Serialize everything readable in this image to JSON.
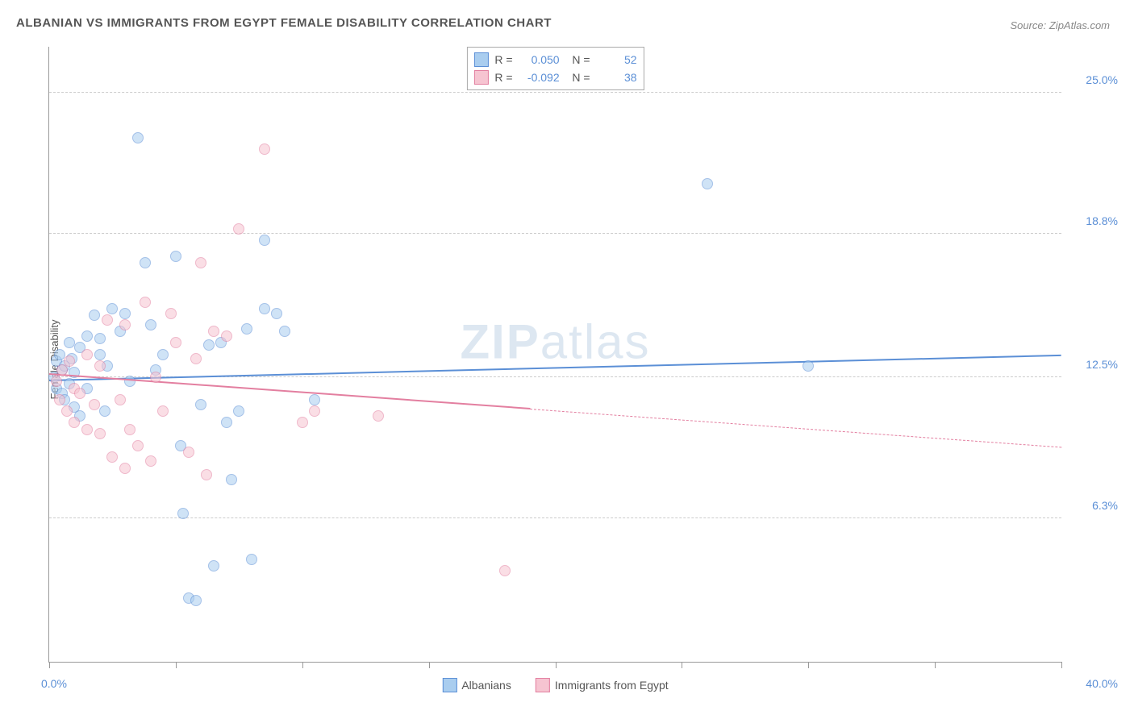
{
  "title": "ALBANIAN VS IMMIGRANTS FROM EGYPT FEMALE DISABILITY CORRELATION CHART",
  "source": "Source: ZipAtlas.com",
  "ylabel": "Female Disability",
  "watermark_bold": "ZIP",
  "watermark_rest": "atlas",
  "chart": {
    "type": "scatter",
    "background_color": "#ffffff",
    "grid_color": "#cccccc",
    "axis_color": "#999999",
    "text_color": "#555555",
    "value_color": "#5b8fd6",
    "xlim": [
      0,
      40
    ],
    "ylim": [
      0,
      27
    ],
    "xticks": [
      0,
      5,
      10,
      15,
      20,
      25,
      30,
      35,
      40
    ],
    "yticks": [
      6.3,
      12.5,
      18.8,
      25.0
    ],
    "ytick_labels": [
      "6.3%",
      "12.5%",
      "18.8%",
      "25.0%"
    ],
    "xmin_label": "0.0%",
    "xmax_label": "40.0%",
    "marker_radius": 7,
    "marker_opacity": 0.55,
    "series": [
      {
        "name": "Albanians",
        "fill": "#a9cdef",
        "stroke": "#5b8fd6",
        "R": "0.050",
        "N": "52",
        "trend": {
          "x1": 0,
          "y1": 12.3,
          "x2": 40,
          "y2": 13.4,
          "solid_until_x": 40
        },
        "points": [
          [
            0.2,
            12.5
          ],
          [
            0.3,
            13.2
          ],
          [
            0.3,
            12.0
          ],
          [
            0.4,
            13.5
          ],
          [
            0.5,
            11.8
          ],
          [
            0.5,
            12.8
          ],
          [
            0.6,
            13.0
          ],
          [
            0.6,
            11.5
          ],
          [
            0.8,
            12.2
          ],
          [
            0.8,
            14.0
          ],
          [
            0.9,
            13.3
          ],
          [
            1.0,
            12.7
          ],
          [
            1.0,
            11.2
          ],
          [
            1.2,
            13.8
          ],
          [
            1.2,
            10.8
          ],
          [
            1.5,
            14.3
          ],
          [
            1.5,
            12.0
          ],
          [
            1.8,
            15.2
          ],
          [
            2.0,
            13.5
          ],
          [
            2.0,
            14.2
          ],
          [
            2.2,
            11.0
          ],
          [
            2.5,
            15.5
          ],
          [
            2.8,
            14.5
          ],
          [
            3.0,
            15.3
          ],
          [
            3.5,
            23.0
          ],
          [
            3.8,
            17.5
          ],
          [
            4.0,
            14.8
          ],
          [
            4.5,
            13.5
          ],
          [
            5.0,
            17.8
          ],
          [
            5.2,
            9.5
          ],
          [
            5.3,
            6.5
          ],
          [
            5.5,
            2.8
          ],
          [
            5.8,
            2.7
          ],
          [
            6.0,
            11.3
          ],
          [
            6.3,
            13.9
          ],
          [
            6.5,
            4.2
          ],
          [
            6.8,
            14.0
          ],
          [
            7.0,
            10.5
          ],
          [
            7.2,
            8.0
          ],
          [
            7.5,
            11.0
          ],
          [
            7.8,
            14.6
          ],
          [
            8.0,
            4.5
          ],
          [
            8.5,
            15.5
          ],
          [
            8.5,
            18.5
          ],
          [
            9.0,
            15.3
          ],
          [
            9.3,
            14.5
          ],
          [
            10.5,
            11.5
          ],
          [
            26.0,
            21.0
          ],
          [
            30.0,
            13.0
          ],
          [
            4.2,
            12.8
          ],
          [
            3.2,
            12.3
          ],
          [
            2.3,
            13.0
          ]
        ]
      },
      {
        "name": "Immigrants from Egypt",
        "fill": "#f6c4d1",
        "stroke": "#e37fa0",
        "R": "-0.092",
        "N": "38",
        "trend": {
          "x1": 0,
          "y1": 12.6,
          "x2": 40,
          "y2": 9.4,
          "solid_until_x": 19
        },
        "points": [
          [
            0.3,
            12.3
          ],
          [
            0.4,
            11.5
          ],
          [
            0.5,
            12.8
          ],
          [
            0.7,
            11.0
          ],
          [
            0.8,
            13.2
          ],
          [
            1.0,
            10.5
          ],
          [
            1.0,
            12.0
          ],
          [
            1.2,
            11.8
          ],
          [
            1.5,
            10.2
          ],
          [
            1.5,
            13.5
          ],
          [
            1.8,
            11.3
          ],
          [
            2.0,
            10.0
          ],
          [
            2.0,
            13.0
          ],
          [
            2.3,
            15.0
          ],
          [
            2.5,
            9.0
          ],
          [
            2.8,
            11.5
          ],
          [
            3.0,
            8.5
          ],
          [
            3.0,
            14.8
          ],
          [
            3.2,
            10.2
          ],
          [
            3.5,
            9.5
          ],
          [
            3.8,
            15.8
          ],
          [
            4.0,
            8.8
          ],
          [
            4.2,
            12.5
          ],
          [
            4.5,
            11.0
          ],
          [
            5.0,
            14.0
          ],
          [
            5.5,
            9.2
          ],
          [
            5.8,
            13.3
          ],
          [
            6.0,
            17.5
          ],
          [
            6.2,
            8.2
          ],
          [
            6.5,
            14.5
          ],
          [
            7.0,
            14.3
          ],
          [
            7.5,
            19.0
          ],
          [
            8.5,
            22.5
          ],
          [
            10.0,
            10.5
          ],
          [
            10.5,
            11.0
          ],
          [
            13.0,
            10.8
          ],
          [
            18.0,
            4.0
          ],
          [
            4.8,
            15.3
          ]
        ]
      }
    ]
  },
  "legend_bottom": [
    {
      "label": "Albanians",
      "fill": "#a9cdef",
      "stroke": "#5b8fd6"
    },
    {
      "label": "Immigrants from Egypt",
      "fill": "#f6c4d1",
      "stroke": "#e37fa0"
    }
  ],
  "legend_top_labels": {
    "R": "R =",
    "N": "N ="
  }
}
